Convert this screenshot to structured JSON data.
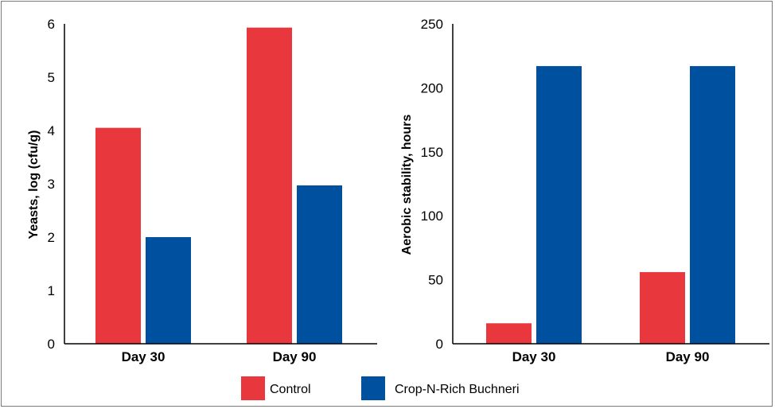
{
  "colors": {
    "control": "#e8383d",
    "buchneri": "#0050a0",
    "axis": "#000000"
  },
  "legend": [
    {
      "label": "Control",
      "color": "#e8383d"
    },
    {
      "label": "Crop-N-Rich Buchneri",
      "color": "#0050a0"
    }
  ],
  "chart_data": [
    {
      "type": "bar",
      "categories": [
        "Day 30",
        "Day 90"
      ],
      "series": [
        {
          "name": "Control",
          "values": [
            4.05,
            5.93
          ]
        },
        {
          "name": "Crop-N-Rich Buchneri",
          "values": [
            2.0,
            2.97
          ]
        }
      ],
      "title": "",
      "xlabel": "",
      "ylabel": "Yeasts, log (cfu/g)",
      "ylim": [
        0,
        6
      ],
      "yticks": [
        "0",
        "1",
        "2",
        "3",
        "4",
        "5",
        "6"
      ],
      "grid": false
    },
    {
      "type": "bar",
      "categories": [
        "Day 30",
        "Day 90"
      ],
      "series": [
        {
          "name": "Control",
          "values": [
            16,
            56
          ]
        },
        {
          "name": "Crop-N-Rich Buchneri",
          "values": [
            217,
            217
          ]
        }
      ],
      "title": "",
      "xlabel": "",
      "ylabel": "Aerobic stability, hours",
      "ylim": [
        0,
        250
      ],
      "yticks": [
        "0",
        "50",
        "100",
        "150",
        "200",
        "250"
      ],
      "grid": false
    }
  ]
}
